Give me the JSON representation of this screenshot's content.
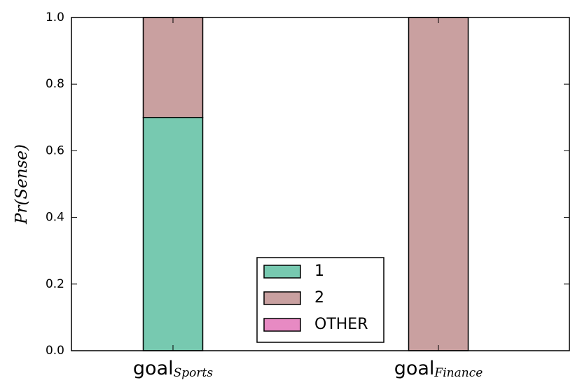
{
  "chart_data": {
    "type": "stacked_bar",
    "y_label": "Pr(Sense)",
    "categories": [
      "goal",
      "goal"
    ],
    "category_subscripts": [
      "Sports",
      "Finance"
    ],
    "series": [
      {
        "name": "1",
        "color": "#77c9b0",
        "values": [
          0.7,
          0.0
        ]
      },
      {
        "name": "2",
        "color": "#c9a0a0",
        "values": [
          0.3,
          1.0
        ]
      },
      {
        "name": "OTHER",
        "color": "#e78ac3",
        "values": [
          0.0,
          0.0
        ]
      }
    ],
    "ylim": [
      0,
      1
    ],
    "yticks": [
      {
        "value": 0,
        "label": "0.0"
      },
      0.2,
      0.4,
      0.6,
      0.8,
      {
        "value": 1,
        "label": "1.0"
      }
    ],
    "legend": "lower center"
  }
}
